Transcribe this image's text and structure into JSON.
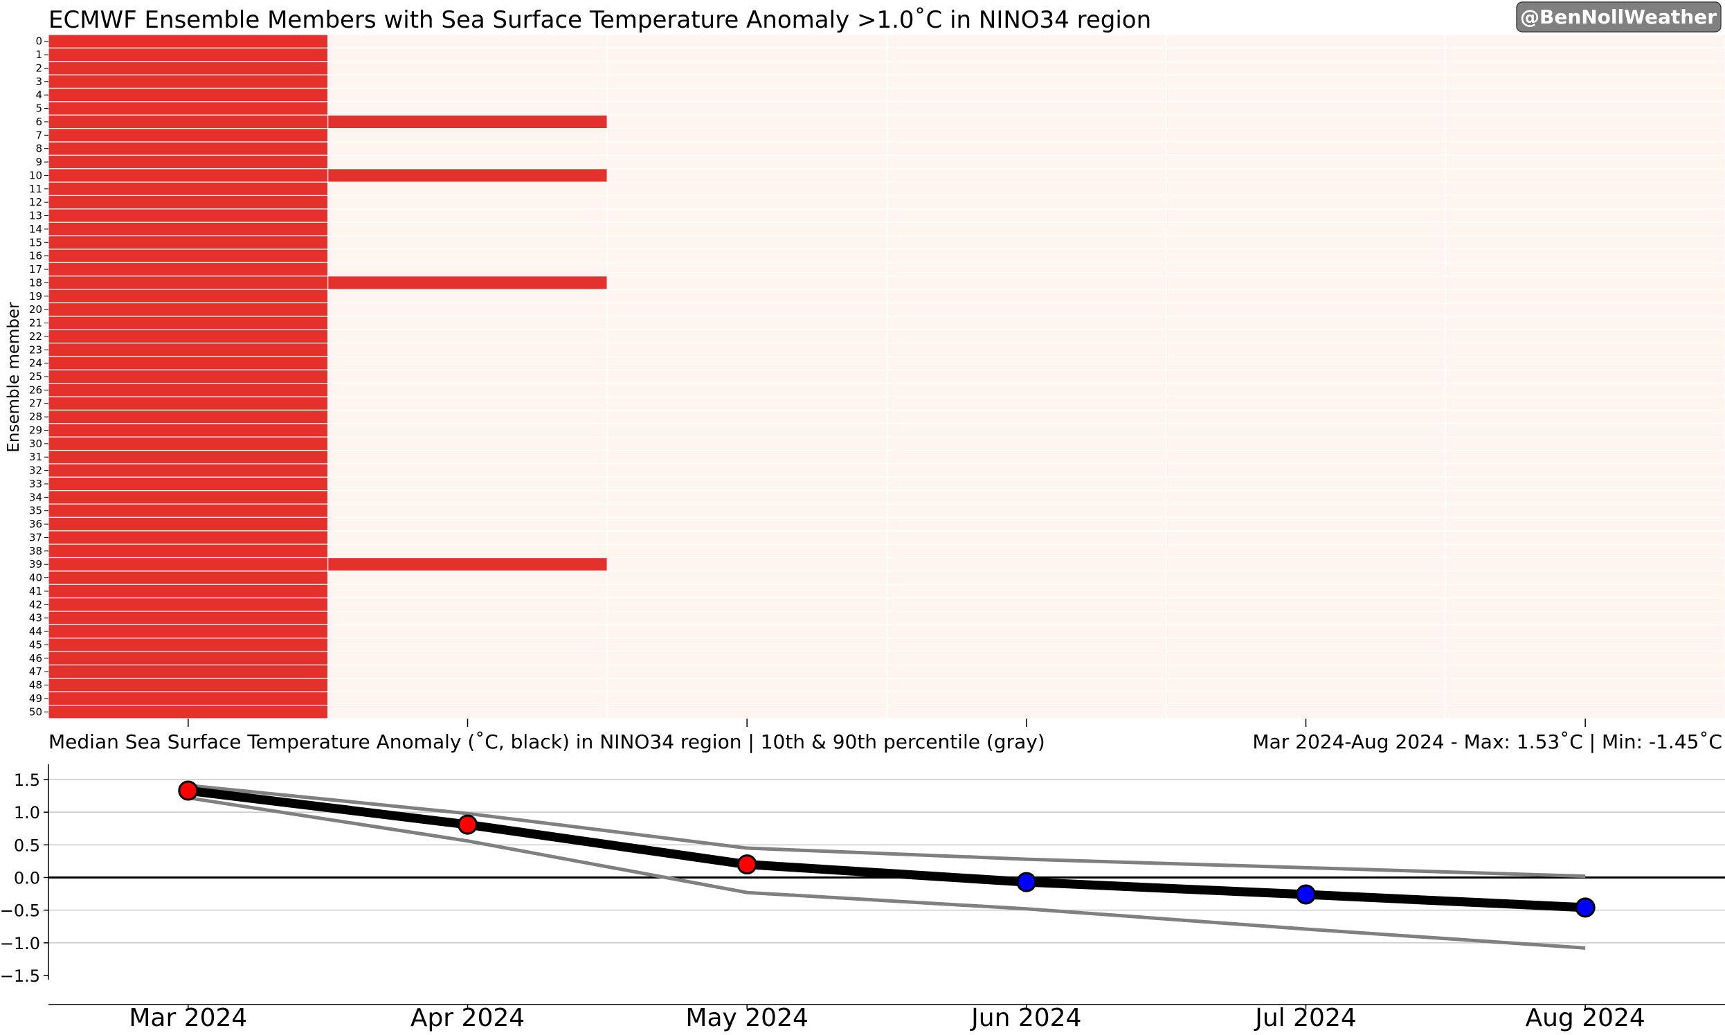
{
  "header": {
    "title": "ECMWF Ensemble Members with Sea Surface Temperature Anomaly >1.0˚C in NINO34 region",
    "badge": "@BenNollWeather"
  },
  "chart_data": [
    {
      "type": "heatmap",
      "title": "ECMWF Ensemble Members with Sea Surface Temperature Anomaly >1.0˚C in NINO34 region",
      "xlabel": "",
      "ylabel": "Ensemble member",
      "x_categories": [
        "Mar 2024",
        "Apr 2024",
        "May 2024",
        "Jun 2024",
        "Jul 2024",
        "Aug 2024"
      ],
      "y_categories": [
        0,
        1,
        2,
        3,
        4,
        5,
        6,
        7,
        8,
        9,
        10,
        11,
        12,
        13,
        14,
        15,
        16,
        17,
        18,
        19,
        20,
        21,
        22,
        23,
        24,
        25,
        26,
        27,
        28,
        29,
        30,
        31,
        32,
        33,
        34,
        35,
        36,
        37,
        38,
        39,
        40,
        41,
        42,
        43,
        44,
        45,
        46,
        47,
        48,
        49,
        50
      ],
      "exceeds_threshold_by_month": [
        [
          0,
          1,
          2,
          3,
          4,
          5,
          6,
          7,
          8,
          9,
          10,
          11,
          12,
          13,
          14,
          15,
          16,
          17,
          18,
          19,
          20,
          21,
          22,
          23,
          24,
          25,
          26,
          27,
          28,
          29,
          30,
          31,
          32,
          33,
          34,
          35,
          36,
          37,
          38,
          39,
          40,
          41,
          42,
          43,
          44,
          45,
          46,
          47,
          48,
          49,
          50
        ],
        [
          6,
          10,
          18,
          39
        ],
        [],
        [],
        [],
        []
      ],
      "colors": {
        "exceeds": "#e4312b",
        "below": "#fff5f0"
      }
    },
    {
      "type": "line",
      "title": "Median Sea Surface Temperature Anomaly (˚C, black) in NINO34 region | 10th & 90th percentile (gray)",
      "subtitle_right": "Mar 2024-Aug 2024 - Max: 1.53˚C | Min: -1.45˚C",
      "xlabel": "",
      "ylabel": "",
      "categories": [
        "Mar 2024",
        "Apr 2024",
        "May 2024",
        "Jun 2024",
        "Jul 2024",
        "Aug 2024"
      ],
      "series": [
        {
          "values": [
            1.33,
            0.81,
            0.2,
            -0.07,
            -0.26,
            -0.46
          ],
          "color": "#000000"
        },
        {
          "values": [
            1.41,
            0.98,
            0.45,
            0.28,
            0.15,
            0.02
          ],
          "color": "#808080"
        },
        {
          "values": [
            1.22,
            0.56,
            -0.23,
            -0.48,
            -0.79,
            -1.08
          ],
          "color": "#808080"
        }
      ],
      "ylim": [
        -1.5,
        1.5
      ],
      "yticks": [
        "1.5",
        "1.0",
        "0.5",
        "0.0",
        "−0.5",
        "−1.0",
        "−1.5"
      ],
      "ytick_values": [
        1.5,
        1.0,
        0.5,
        0.0,
        -0.5,
        -1.0,
        -1.5
      ],
      "marker_colors": {
        "positive": "#ff0000",
        "negative": "#0000ff"
      },
      "grid": true
    }
  ]
}
